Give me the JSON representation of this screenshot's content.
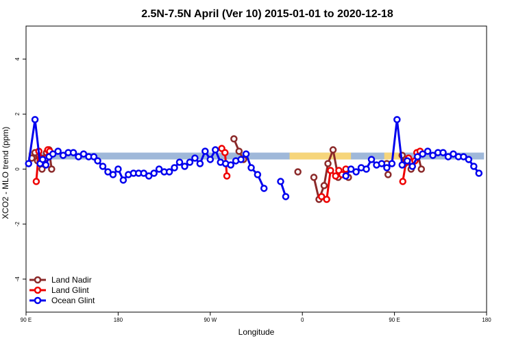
{
  "chart_data": {
    "type": "line",
    "title": "2.5N-7.5N April (Ver 10)   2015-01-01 to 2020-12-18",
    "xlabel": "Longitude",
    "ylabel": "XCO2 - MLO trend (ppm)",
    "xlim": [
      0,
      360
    ],
    "ylim": [
      -5.2,
      5.2
    ],
    "x_ticks": [
      {
        "value": 0,
        "label": "90 E"
      },
      {
        "value": 72,
        "label": "180"
      },
      {
        "value": 144,
        "label": "90 W"
      },
      {
        "value": 216,
        "label": "0"
      },
      {
        "value": 288,
        "label": "90 E"
      },
      {
        "value": 360,
        "label": "180"
      }
    ],
    "y_ticks": [
      {
        "value": -4,
        "label": "-4"
      },
      {
        "value": -2,
        "label": "-2"
      },
      {
        "value": 0,
        "label": "0"
      },
      {
        "value": 2,
        "label": "2"
      },
      {
        "value": 4,
        "label": "4"
      }
    ],
    "grid": false,
    "legend_position": "bottom-left",
    "band": {
      "ymin": 0.35,
      "ymax": 0.6,
      "color": "#9fb8d9",
      "land_color": "#f6d57a",
      "land_segments": [
        [
          2,
          8
        ],
        [
          206,
          254
        ],
        [
          280,
          296
        ]
      ]
    },
    "series": [
      {
        "name": "Land Nadir",
        "color": "#8b2a2a",
        "segments": [
          [
            [
              4.5,
              0.4
            ],
            [
              7,
              0.6
            ],
            [
              9,
              0.3
            ],
            [
              11,
              0.3
            ],
            [
              12.5,
              0
            ],
            [
              14,
              0.4
            ],
            [
              16,
              0.6
            ],
            [
              18,
              0.7
            ],
            [
              20,
              0
            ]
          ],
          [
            [
              162.5,
              1.1
            ],
            [
              166.5,
              0.65
            ],
            [
              170,
              0.35
            ]
          ],
          [
            [
              212.5,
              -0.1
            ]
          ],
          [
            [
              225,
              -0.3
            ],
            [
              229,
              -1.1
            ],
            [
              233,
              -0.6
            ],
            [
              236,
              0.2
            ],
            [
              240,
              0.7
            ],
            [
              244,
              -0.3
            ],
            [
              248,
              -0.2
            ],
            [
              252,
              -0.3
            ]
          ],
          [
            [
              282,
              0.2
            ],
            [
              283,
              -0.2
            ]
          ],
          [
            [
              294,
              0.5
            ],
            [
              296,
              0.2
            ],
            [
              298,
              0.3
            ],
            [
              301,
              0
            ],
            [
              306,
              0.6
            ],
            [
              309,
              0
            ]
          ]
        ]
      },
      {
        "name": "Land Glint",
        "color": "#ee0000",
        "segments": [
          [
            [
              8,
              -0.45
            ],
            [
              10,
              0.65
            ],
            [
              14,
              0.3
            ],
            [
              16,
              0.4
            ],
            [
              17,
              0.7
            ],
            [
              18.5,
              0.65
            ]
          ],
          [
            [
              153,
              0.75
            ],
            [
              155.5,
              0.6
            ],
            [
              157,
              -0.25
            ]
          ],
          [
            [
              231,
              -1.0
            ],
            [
              235,
              -1.1
            ],
            [
              238,
              -0.05
            ],
            [
              242,
              -0.25
            ],
            [
              244.5,
              -0.05
            ],
            [
              247,
              -0.2
            ],
            [
              250,
              0
            ]
          ],
          [
            [
              294.5,
              -0.45
            ],
            [
              297,
              0.25
            ],
            [
              299,
              0.4
            ],
            [
              304,
              0.3
            ],
            [
              305.5,
              0.6
            ],
            [
              308,
              0.65
            ]
          ]
        ]
      },
      {
        "name": "Ocean Glint",
        "color": "#0000ee",
        "segments": [
          [
            [
              2,
              0.2
            ],
            [
              7,
              1.8
            ],
            [
              11,
              0.2
            ],
            [
              13,
              0.35
            ],
            [
              15.5,
              0.15
            ],
            [
              18,
              0.45
            ],
            [
              21,
              0.55
            ],
            [
              25,
              0.65
            ],
            [
              29,
              0.5
            ],
            [
              33,
              0.6
            ],
            [
              37,
              0.6
            ],
            [
              41,
              0.45
            ],
            [
              45,
              0.55
            ],
            [
              49,
              0.45
            ],
            [
              53,
              0.45
            ],
            [
              56,
              0.3
            ],
            [
              60,
              0.1
            ],
            [
              64,
              -0.1
            ],
            [
              68,
              -0.2
            ],
            [
              72,
              0
            ],
            [
              76,
              -0.4
            ],
            [
              80,
              -0.2
            ],
            [
              84,
              -0.15
            ],
            [
              88,
              -0.15
            ],
            [
              92,
              -0.15
            ],
            [
              96,
              -0.25
            ],
            [
              100,
              -0.15
            ],
            [
              104,
              0
            ],
            [
              108,
              -0.1
            ],
            [
              112,
              -0.1
            ],
            [
              116,
              0.05
            ],
            [
              120,
              0.25
            ],
            [
              124,
              0.1
            ],
            [
              128,
              0.25
            ],
            [
              132,
              0.4
            ],
            [
              136,
              0.2
            ],
            [
              140,
              0.65
            ],
            [
              144,
              0.35
            ],
            [
              148,
              0.7
            ],
            [
              152,
              0.25
            ],
            [
              156,
              0.2
            ],
            [
              160,
              0.15
            ],
            [
              164,
              0.3
            ],
            [
              168,
              0.35
            ],
            [
              172,
              0.55
            ],
            [
              176,
              0.05
            ],
            [
              181,
              -0.2
            ],
            [
              186,
              -0.7
            ]
          ],
          [
            [
              199,
              -0.45
            ],
            [
              203,
              -1.0
            ]
          ],
          [
            [
              250,
              -0.25
            ],
            [
              254,
              0
            ],
            [
              258,
              -0.1
            ],
            [
              262,
              0.05
            ],
            [
              266,
              0
            ],
            [
              270,
              0.35
            ],
            [
              274,
              0.15
            ],
            [
              278,
              0.2
            ],
            [
              282,
              0.05
            ],
            [
              286,
              0.2
            ],
            [
              290,
              1.8
            ],
            [
              294,
              0.15
            ],
            [
              298,
              0.3
            ],
            [
              302,
              0.1
            ],
            [
              306,
              0.45
            ],
            [
              310,
              0.55
            ],
            [
              314,
              0.65
            ],
            [
              318,
              0.5
            ],
            [
              322,
              0.6
            ],
            [
              326,
              0.6
            ],
            [
              330,
              0.45
            ],
            [
              334,
              0.55
            ],
            [
              338,
              0.45
            ],
            [
              342,
              0.45
            ],
            [
              346,
              0.35
            ],
            [
              350,
              0.1
            ],
            [
              354,
              -0.15
            ]
          ]
        ]
      }
    ]
  }
}
